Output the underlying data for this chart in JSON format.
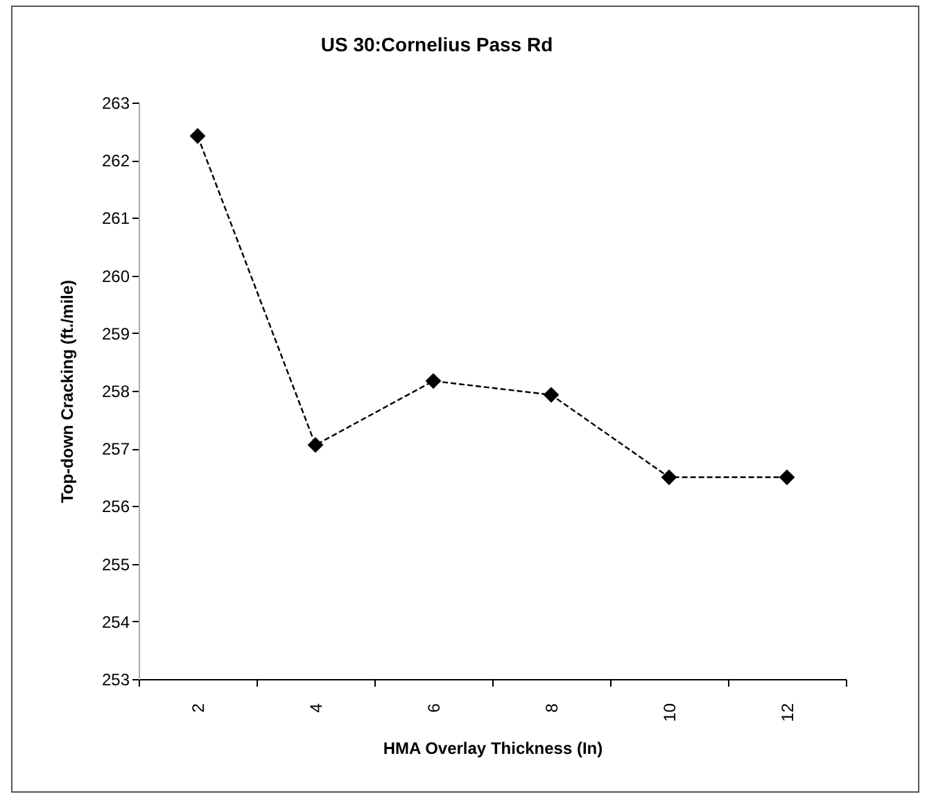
{
  "chart_data": {
    "type": "line",
    "title": "US 30:Cornelius Pass Rd",
    "xlabel": "HMA Overlay Thickness (In)",
    "ylabel": "Top-down Cracking (ft./mile)",
    "categories": [
      "2",
      "4",
      "6",
      "8",
      "10",
      "12"
    ],
    "series": [
      {
        "color": "#000000",
        "values": [
          262.42,
          257.06,
          258.17,
          257.93,
          256.5,
          256.5
        ]
      }
    ],
    "ylim": [
      253,
      263
    ],
    "yticks": [
      253,
      254,
      255,
      256,
      257,
      258,
      259,
      260,
      261,
      262,
      263
    ],
    "grid": false,
    "legend": false,
    "marker": "diamond",
    "line_style": "dashed"
  }
}
